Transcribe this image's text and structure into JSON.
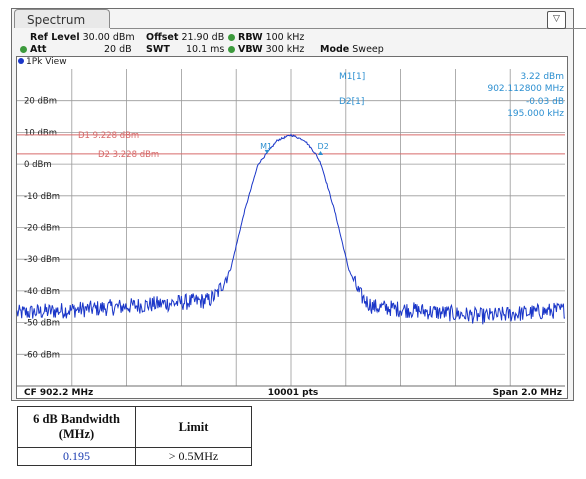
{
  "tab": {
    "label": "Spectrum"
  },
  "settings": {
    "ref_level_label": "Ref Level",
    "ref_level": "30.00 dBm",
    "offset_label": "Offset",
    "offset": "21.90 dB",
    "rbw_label": "RBW",
    "rbw": "100 kHz",
    "att_label": "Att",
    "att": "20 dB",
    "swt_label": "SWT",
    "swt": "10.1 ms",
    "vbw_label": "VBW",
    "vbw": "300 kHz",
    "mode_label": "Mode",
    "mode": "Sweep"
  },
  "view_label": "1Pk View",
  "markers": {
    "m1_label": "M1[1]",
    "m1_level": "3.22 dBm",
    "m1_freq": "902.112800 MHz",
    "d2_label": "D2[1]",
    "d2_level": "-0.03 dB",
    "d2_freq": "195.000 kHz",
    "m1_tag": "M1",
    "d2_tag": "D2"
  },
  "display_lines": {
    "d1_text": "D1 9.228 dBm",
    "d1_value": 9.228,
    "d2_text": "D2 3.228 dBm",
    "d2_value": 3.228
  },
  "footer": {
    "cf": "CF 902.2 MHz",
    "pts": "10001 pts",
    "span": "Span 2.0 MHz"
  },
  "chart_data": {
    "type": "line",
    "ylim": [
      -70,
      30
    ],
    "xlim": [
      901.2,
      903.2
    ],
    "y_ticks": [
      "20 dBm",
      "10 dBm",
      "0 dBm",
      "-10 dBm",
      "-20 dBm",
      "-30 dBm",
      "-40 dBm",
      "-50 dBm",
      "-60 dBm"
    ],
    "y_tick_values": [
      20,
      10,
      0,
      -10,
      -20,
      -30,
      -40,
      -50,
      -60
    ],
    "grid": true,
    "series": [
      {
        "values_mhz": [
          901.2,
          901.5,
          901.9,
          901.93,
          901.98,
          902.03,
          902.08,
          902.11,
          902.15,
          902.2,
          902.25,
          902.29,
          902.31,
          902.36,
          902.41,
          902.45,
          902.47,
          902.5,
          902.9,
          903.2
        ],
        "values_dbm": [
          -47,
          -45.5,
          -43,
          -41,
          -33,
          -15,
          0,
          3.22,
          7.5,
          9.2,
          7.5,
          3.2,
          0,
          -15,
          -33,
          -41,
          -43,
          -45,
          -48,
          -46
        ]
      }
    ],
    "trace_color": "#1a36c8",
    "line_color": "#d66a6a",
    "marker_color": "#2c8fd0"
  },
  "result_table": {
    "col1_header": "6 dB Bandwidth (MHz)",
    "col2_header": "Limit",
    "col1_value": "0.195",
    "col2_value": "> 0.5MHz"
  }
}
